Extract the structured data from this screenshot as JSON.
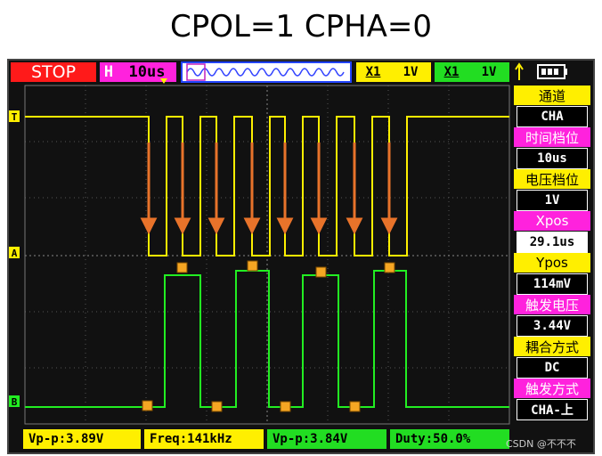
{
  "title": "CPOL=1 CPHA=0",
  "top_bar": {
    "status": "STOP",
    "timebase_label": "H",
    "timebase": "10us",
    "ch1_probe": "X1",
    "ch1_volts": "1V",
    "ch2_probe": "X1",
    "ch2_volts": "1V"
  },
  "markers": {
    "trigger": "T",
    "channel_a": "A",
    "channel_b": "B"
  },
  "side_panel": [
    {
      "label": "通道",
      "value": "CHA"
    },
    {
      "label": "时间档位",
      "value": "10us"
    },
    {
      "label": "电压档位",
      "value": "1V"
    },
    {
      "label": "Xpos",
      "value": "29.1us"
    },
    {
      "label": "Ypos",
      "value": "114mV"
    },
    {
      "label": "触发电压",
      "value": "3.44V"
    },
    {
      "label": "耦合方式",
      "value": "DC"
    },
    {
      "label": "触发方式",
      "value": "CHA-上"
    }
  ],
  "measurements": [
    "Vp-p:3.89V",
    "Freq:141kHz",
    "Vp-p:3.84V",
    "Duty:50.0%"
  ],
  "watermark": "CSDN @不不不"
}
